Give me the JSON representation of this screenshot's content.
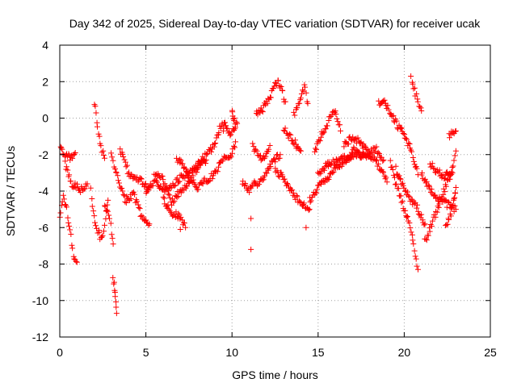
{
  "chart_data": {
    "type": "scatter",
    "title": "Day 342 of 2025, Sidereal Day-to-day VTEC variation (SDTVAR) for receiver ucak",
    "xlabel": "GPS time / hours",
    "ylabel": "SDTVAR / TECUs",
    "xlim": [
      0,
      25
    ],
    "ylim": [
      -12,
      4
    ],
    "xticks": [
      0,
      5,
      10,
      15,
      20,
      25
    ],
    "yticks": [
      -12,
      -10,
      -8,
      -6,
      -4,
      -2,
      0,
      2,
      4
    ],
    "grid": true,
    "marker": "+",
    "color": "#ff0000",
    "series": [
      {
        "name": "SDTVAR",
        "tracks": [
          [
            [
              0.0,
              -5.5
            ],
            [
              0.2,
              -4.4
            ],
            [
              0.4,
              -5.0
            ],
            [
              0.6,
              -6.2
            ],
            [
              0.8,
              -7.5
            ],
            [
              1.0,
              -7.9
            ]
          ],
          [
            [
              0.0,
              -1.4
            ],
            [
              0.3,
              -2.0
            ],
            [
              0.6,
              -2.2
            ],
            [
              0.9,
              -1.9
            ]
          ],
          [
            [
              0.3,
              -2.5
            ],
            [
              0.7,
              -3.6
            ],
            [
              1.2,
              -3.9
            ],
            [
              1.6,
              -3.6
            ]
          ],
          [
            [
              1.8,
              -4.0
            ],
            [
              2.0,
              -5.5
            ],
            [
              2.2,
              -6.2
            ],
            [
              2.4,
              -6.6
            ],
            [
              2.6,
              -6.0
            ],
            [
              2.8,
              -4.5
            ]
          ],
          [
            [
              2.0,
              0.9
            ],
            [
              2.2,
              -0.5
            ],
            [
              2.4,
              -1.6
            ],
            [
              2.6,
              -2.2
            ]
          ],
          [
            [
              2.6,
              -4.8
            ],
            [
              2.9,
              -5.5
            ],
            [
              3.1,
              -6.9
            ]
          ],
          [
            [
              3.1,
              -8.7
            ],
            [
              3.2,
              -9.6
            ],
            [
              3.3,
              -10.7
            ]
          ],
          [
            [
              3.0,
              -2.0
            ],
            [
              3.4,
              -3.5
            ],
            [
              3.8,
              -4.5
            ],
            [
              4.3,
              -4.2
            ],
            [
              4.8,
              -5.5
            ],
            [
              5.2,
              -5.8
            ]
          ],
          [
            [
              3.5,
              -1.8
            ],
            [
              4.0,
              -3.0
            ],
            [
              4.6,
              -3.4
            ],
            [
              5.2,
              -3.8
            ]
          ],
          [
            [
              5.0,
              -4.0
            ],
            [
              5.5,
              -3.5
            ],
            [
              6.0,
              -4.0
            ],
            [
              6.5,
              -3.7
            ],
            [
              7.0,
              -3.3
            ],
            [
              7.5,
              -3.0
            ],
            [
              8.0,
              -2.8
            ]
          ],
          [
            [
              5.5,
              -3.0
            ],
            [
              6.0,
              -3.4
            ],
            [
              6.5,
              -4.6
            ],
            [
              7.0,
              -4.0
            ],
            [
              7.5,
              -3.5
            ],
            [
              8.0,
              -2.5
            ],
            [
              8.5,
              -2.3
            ]
          ],
          [
            [
              6.0,
              -4.5
            ],
            [
              6.5,
              -5.2
            ],
            [
              7.0,
              -5.4
            ],
            [
              7.3,
              -6.0
            ]
          ],
          [
            [
              6.8,
              -2.2
            ],
            [
              7.2,
              -2.6
            ],
            [
              7.6,
              -3.4
            ],
            [
              8.0,
              -3.8
            ],
            [
              8.4,
              -3.3
            ]
          ],
          [
            [
              8.0,
              -2.7
            ],
            [
              8.5,
              -2.0
            ],
            [
              9.0,
              -1.5
            ],
            [
              9.3,
              -0.6
            ],
            [
              9.6,
              -0.2
            ],
            [
              9.9,
              -0.9
            ],
            [
              10.2,
              -0.5
            ]
          ],
          [
            [
              8.5,
              -3.5
            ],
            [
              9.0,
              -3.0
            ],
            [
              9.5,
              -2.2
            ],
            [
              9.9,
              -2.2
            ],
            [
              10.2,
              -1.3
            ]
          ],
          [
            [
              10.0,
              0.5
            ],
            [
              10.1,
              0.0
            ],
            [
              10.3,
              -0.3
            ]
          ],
          [
            [
              10.6,
              -3.5
            ],
            [
              11.0,
              -4.0
            ],
            [
              11.3,
              -3.5
            ],
            [
              11.6,
              -3.6
            ],
            [
              12.0,
              -3.0
            ],
            [
              12.4,
              -2.3
            ],
            [
              12.8,
              -2.0
            ]
          ],
          [
            [
              11.2,
              -1.5
            ],
            [
              11.5,
              -2.0
            ],
            [
              11.8,
              -2.3
            ],
            [
              12.2,
              -1.5
            ]
          ],
          [
            [
              11.4,
              0.2
            ],
            [
              11.8,
              0.5
            ],
            [
              12.2,
              1.2
            ],
            [
              12.5,
              1.8
            ],
            [
              12.7,
              2.0
            ],
            [
              12.9,
              1.5
            ],
            [
              13.1,
              0.9
            ]
          ],
          [
            [
              12.5,
              -2.8
            ],
            [
              12.9,
              -3.2
            ],
            [
              13.3,
              -3.8
            ],
            [
              13.7,
              -4.3
            ],
            [
              14.1,
              -4.7
            ],
            [
              14.5,
              -5.0
            ]
          ],
          [
            [
              13.0,
              -0.6
            ],
            [
              13.5,
              -1.2
            ],
            [
              14.0,
              -1.8
            ]
          ],
          [
            [
              13.6,
              0.2
            ],
            [
              14.0,
              1.0
            ],
            [
              14.2,
              1.8
            ],
            [
              14.4,
              0.8
            ]
          ],
          [
            [
              14.5,
              -4.5
            ],
            [
              15.0,
              -3.8
            ],
            [
              15.5,
              -3.3
            ],
            [
              16.0,
              -2.8
            ],
            [
              16.5,
              -2.4
            ],
            [
              17.0,
              -2.0
            ]
          ],
          [
            [
              14.8,
              -1.8
            ],
            [
              15.2,
              -0.9
            ],
            [
              15.6,
              -0.2
            ],
            [
              15.9,
              0.5
            ],
            [
              16.1,
              0.1
            ],
            [
              16.3,
              -0.7
            ]
          ],
          [
            [
              15.0,
              -3.0
            ],
            [
              15.5,
              -2.6
            ],
            [
              16.0,
              -2.4
            ],
            [
              16.5,
              -2.2
            ],
            [
              17.0,
              -2.1
            ],
            [
              17.5,
              -2.0
            ],
            [
              18.0,
              -2.1
            ]
          ],
          [
            [
              16.5,
              -1.5
            ],
            [
              17.0,
              -1.0
            ],
            [
              17.5,
              -1.4
            ],
            [
              18.0,
              -2.0
            ],
            [
              18.5,
              -2.6
            ],
            [
              19.0,
              -3.5
            ]
          ],
          [
            [
              17.0,
              -1.7
            ],
            [
              17.5,
              -2.1
            ],
            [
              18.0,
              -1.9
            ],
            [
              18.4,
              -1.7
            ],
            [
              18.8,
              -2.3
            ]
          ],
          [
            [
              18.5,
              0.9
            ],
            [
              18.9,
              0.8
            ],
            [
              19.2,
              0.3
            ],
            [
              19.6,
              -0.4
            ],
            [
              20.0,
              -0.9
            ],
            [
              20.4,
              -1.8
            ],
            [
              20.8,
              -3.1
            ]
          ],
          [
            [
              19.2,
              -2.5
            ],
            [
              19.6,
              -3.8
            ],
            [
              20.0,
              -5.0
            ],
            [
              20.3,
              -5.8
            ],
            [
              20.6,
              -7.2
            ],
            [
              20.8,
              -8.3
            ]
          ],
          [
            [
              19.5,
              -2.8
            ],
            [
              20.0,
              -3.8
            ],
            [
              20.4,
              -4.5
            ],
            [
              20.8,
              -5.0
            ],
            [
              21.2,
              -5.8
            ]
          ],
          [
            [
              20.4,
              2.3
            ],
            [
              20.6,
              1.5
            ],
            [
              20.8,
              0.9
            ],
            [
              21.0,
              0.4
            ]
          ],
          [
            [
              21.0,
              -3.0
            ],
            [
              21.4,
              -3.8
            ],
            [
              21.8,
              -4.3
            ],
            [
              22.2,
              -4.5
            ],
            [
              22.6,
              -4.8
            ],
            [
              23.0,
              -5.0
            ]
          ],
          [
            [
              21.2,
              -6.8
            ],
            [
              21.6,
              -5.8
            ],
            [
              22.0,
              -4.8
            ],
            [
              22.4,
              -3.8
            ],
            [
              22.8,
              -2.8
            ],
            [
              23.0,
              -1.8
            ]
          ],
          [
            [
              21.5,
              -2.5
            ],
            [
              21.9,
              -2.9
            ],
            [
              22.3,
              -3.2
            ],
            [
              22.8,
              -3.0
            ]
          ],
          [
            [
              22.4,
              -5.9
            ],
            [
              22.7,
              -5.2
            ],
            [
              22.9,
              -4.4
            ],
            [
              23.0,
              -3.8
            ]
          ],
          [
            [
              22.6,
              -1.0
            ],
            [
              22.8,
              -0.8
            ],
            [
              23.0,
              -0.7
            ]
          ]
        ],
        "outliers": [
          [
            11.1,
            -7.2
          ],
          [
            11.1,
            -5.5
          ],
          [
            14.3,
            -6.0
          ],
          [
            7.0,
            -6.1
          ],
          [
            9.5,
            -0.7
          ]
        ]
      }
    ]
  }
}
